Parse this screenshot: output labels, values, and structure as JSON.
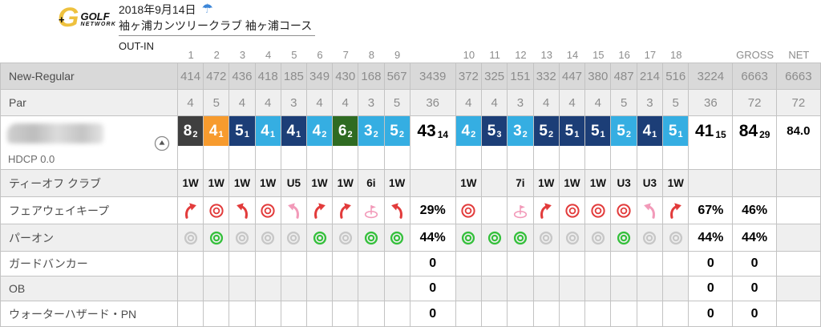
{
  "header": {
    "logo": {
      "mark": "G",
      "primary": "GOLF",
      "secondary": "NETWORK"
    },
    "date": "2018年9月14日",
    "weather": "rain",
    "course_name": "袖ヶ浦カンツリークラブ 袖ヶ浦コース",
    "round_type": "OUT-IN"
  },
  "colors": {
    "score_par": "#35aee2",
    "score_bogey": "#1c3e77",
    "score_birdie": "#f79b2e",
    "score_double_bogey": "#2f6b22",
    "score_quad_or_worse": "#3f3f3f",
    "fairway_arrow": "#e23b3b",
    "fairway_pull": "#f29ab9",
    "paron_hit": "#35c03c",
    "paron_miss": "#c7c7c7"
  },
  "table": {
    "hole_header": [
      "1",
      "2",
      "3",
      "4",
      "5",
      "6",
      "7",
      "8",
      "9",
      "",
      "10",
      "11",
      "12",
      "13",
      "14",
      "15",
      "16",
      "17",
      "18",
      "",
      "GROSS",
      "NET"
    ],
    "player": {
      "hdcp": "HDCP 0.0"
    },
    "rows": [
      {
        "name": "yardage",
        "kind": "num",
        "shade": "dark",
        "label": "New-Regular",
        "cells": [
          "414",
          "472",
          "436",
          "418",
          "185",
          "349",
          "430",
          "168",
          "567",
          "3439",
          "372",
          "325",
          "151",
          "332",
          "447",
          "380",
          "487",
          "214",
          "516",
          "3224",
          "6663",
          "6663"
        ]
      },
      {
        "name": "par",
        "kind": "num",
        "shade": "light",
        "label": "Par",
        "cells": [
          "4",
          "5",
          "4",
          "4",
          "3",
          "4",
          "4",
          "3",
          "5",
          "36",
          "4",
          "4",
          "3",
          "4",
          "4",
          "4",
          "5",
          "3",
          "5",
          "36",
          "72",
          "72"
        ]
      },
      {
        "name": "score",
        "kind": "score",
        "shade": "white",
        "label": "",
        "cells": [
          {
            "v": "8",
            "s": "2",
            "c": "worst"
          },
          {
            "v": "4",
            "s": "1",
            "c": "birdie"
          },
          {
            "v": "5",
            "s": "1",
            "c": "bogey"
          },
          {
            "v": "4",
            "s": "1",
            "c": "par"
          },
          {
            "v": "4",
            "s": "1",
            "c": "bogey"
          },
          {
            "v": "4",
            "s": "2",
            "c": "par"
          },
          {
            "v": "6",
            "s": "2",
            "c": "double"
          },
          {
            "v": "3",
            "s": "2",
            "c": "par"
          },
          {
            "v": "5",
            "s": "2",
            "c": "par"
          },
          {
            "v": "43",
            "s": "14",
            "c": "total"
          },
          {
            "v": "4",
            "s": "2",
            "c": "par"
          },
          {
            "v": "5",
            "s": "3",
            "c": "bogey"
          },
          {
            "v": "3",
            "s": "2",
            "c": "par"
          },
          {
            "v": "5",
            "s": "2",
            "c": "bogey"
          },
          {
            "v": "5",
            "s": "1",
            "c": "bogey"
          },
          {
            "v": "5",
            "s": "1",
            "c": "bogey"
          },
          {
            "v": "5",
            "s": "2",
            "c": "par"
          },
          {
            "v": "4",
            "s": "1",
            "c": "bogey"
          },
          {
            "v": "5",
            "s": "1",
            "c": "par"
          },
          {
            "v": "41",
            "s": "15",
            "c": "total"
          },
          {
            "v": "84",
            "s": "29",
            "c": "total"
          },
          {
            "v": "84.0",
            "s": "",
            "c": "net"
          }
        ]
      },
      {
        "name": "tee-club",
        "kind": "club",
        "shade": "light",
        "label": "ティーオフ クラブ",
        "cells": [
          "1W",
          "1W",
          "1W",
          "1W",
          "U5",
          "1W",
          "1W",
          "6i",
          "1W",
          "",
          "1W",
          "",
          "7i",
          "1W",
          "1W",
          "1W",
          "U3",
          "U3",
          "1W",
          "",
          "",
          ""
        ]
      },
      {
        "name": "fairway-keep",
        "kind": "icons",
        "shade": "white",
        "label": "フェアウェイキープ",
        "cells": [
          "icon:fw-right",
          "icon:fw-keep",
          "icon:fw-left",
          "icon:fw-keep",
          "icon:fw-pull",
          "icon:fw-right",
          "icon:fw-right",
          "icon:fw-green",
          "icon:fw-left",
          "29%",
          "icon:fw-keep",
          "",
          "icon:fw-green",
          "icon:fw-right",
          "icon:fw-keep",
          "icon:fw-keep",
          "icon:fw-keep",
          "icon:fw-pull",
          "icon:fw-right",
          "67%",
          "46%",
          ""
        ]
      },
      {
        "name": "par-on",
        "kind": "icons",
        "shade": "light",
        "label": "パーオン",
        "cells": [
          "icon:gir-miss",
          "icon:gir-hit",
          "icon:gir-miss",
          "icon:gir-miss",
          "icon:gir-miss",
          "icon:gir-hit",
          "icon:gir-miss",
          "icon:gir-hit",
          "icon:gir-hit",
          "44%",
          "icon:gir-hit",
          "icon:gir-hit",
          "icon:gir-hit",
          "icon:gir-miss",
          "icon:gir-miss",
          "icon:gir-miss",
          "icon:gir-hit",
          "icon:gir-miss",
          "icon:gir-miss",
          "44%",
          "44%",
          ""
        ]
      },
      {
        "name": "guard-bunker",
        "kind": "stat",
        "shade": "white",
        "label": "ガードバンカー",
        "cells": [
          "",
          "",
          "",
          "",
          "",
          "",
          "",
          "",
          "",
          "0",
          "",
          "",
          "",
          "",
          "",
          "",
          "",
          "",
          "",
          "0",
          "0",
          ""
        ]
      },
      {
        "name": "ob",
        "kind": "stat",
        "shade": "light",
        "label": "OB",
        "cells": [
          "",
          "",
          "",
          "",
          "",
          "",
          "",
          "",
          "",
          "0",
          "",
          "",
          "",
          "",
          "",
          "",
          "",
          "",
          "",
          "0",
          "0",
          ""
        ]
      },
      {
        "name": "water-hazard",
        "kind": "stat",
        "shade": "white",
        "label": "ウォーターハザード・PN",
        "cells": [
          "",
          "",
          "",
          "",
          "",
          "",
          "",
          "",
          "",
          "0",
          "",
          "",
          "",
          "",
          "",
          "",
          "",
          "",
          "",
          "0",
          "0",
          ""
        ]
      }
    ]
  }
}
